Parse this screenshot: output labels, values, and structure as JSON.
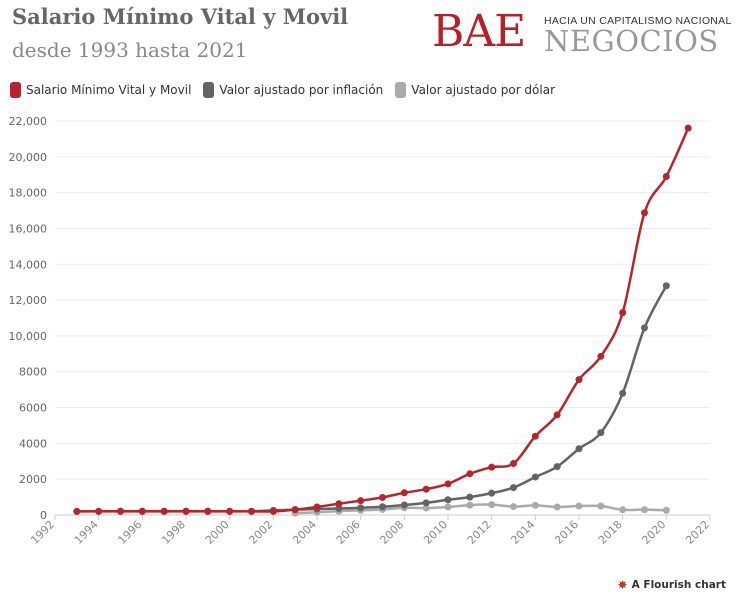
{
  "header": {
    "title": "Salario Mínimo Vital y Movil",
    "subtitle": "desde 1993 hasta 2021"
  },
  "logo": {
    "main": "BAE",
    "tagline": "HACIA UN CAPITALISMO NACIONAL",
    "sub": "NEGOCIOS"
  },
  "footer": {
    "credit": "A Flourish chart",
    "credit_icon": "flourish-icon"
  },
  "chart_data": {
    "type": "line",
    "title": "Salario Mínimo Vital y Movil",
    "subtitle": "desde 1993 hasta 2021",
    "xlabel": "",
    "ylabel": "",
    "xlim": [
      1992,
      2022
    ],
    "ylim": [
      0,
      22000
    ],
    "grid": true,
    "legend_position": "top-left",
    "x_ticks": [
      "1992",
      "1994",
      "1996",
      "1998",
      "2000",
      "2002",
      "2004",
      "2006",
      "2008",
      "2010",
      "2012",
      "2014",
      "2016",
      "2018",
      "2020",
      "2022"
    ],
    "y_ticks": [
      "0",
      "2000",
      "4000",
      "6000",
      "8000",
      "10,000",
      "12,000",
      "14,000",
      "16,000",
      "18,000",
      "20,000",
      "22,000"
    ],
    "series": [
      {
        "name": "Salario Mínimo Vital y Movil",
        "color": "#b8232c",
        "x": [
          1993,
          1994,
          1995,
          1996,
          1997,
          1998,
          1999,
          2000,
          2001,
          2002,
          2003,
          2004,
          2005,
          2006,
          2007,
          2008,
          2009,
          2010,
          2011,
          2012,
          2013,
          2014,
          2015,
          2016,
          2017,
          2018,
          2019,
          2020,
          2021
        ],
        "values": [
          200,
          200,
          200,
          200,
          200,
          200,
          200,
          200,
          200,
          200,
          300,
          450,
          630,
          800,
          980,
          1240,
          1440,
          1740,
          2300,
          2670,
          2875,
          4400,
          5590,
          7560,
          8860,
          11300,
          16875,
          18900,
          21600
        ]
      },
      {
        "name": "Valor ajustado por inflación",
        "color": "#636363",
        "x": [
          1993,
          1994,
          1995,
          1996,
          1997,
          1998,
          1999,
          2000,
          2001,
          2002,
          2003,
          2004,
          2005,
          2006,
          2007,
          2008,
          2009,
          2010,
          2011,
          2012,
          2013,
          2014,
          2015,
          2016,
          2017,
          2018,
          2019,
          2020
        ],
        "values": [
          200,
          210,
          215,
          215,
          215,
          218,
          215,
          212,
          210,
          260,
          300,
          330,
          360,
          400,
          460,
          560,
          680,
          850,
          1000,
          1220,
          1530,
          2120,
          2700,
          3700,
          4600,
          6800,
          10450,
          12800
        ]
      },
      {
        "name": "Valor ajustado por dólar",
        "color": "#aaaaaa",
        "x": [
          2003,
          2004,
          2005,
          2006,
          2007,
          2008,
          2009,
          2010,
          2011,
          2012,
          2013,
          2014,
          2015,
          2016,
          2017,
          2018,
          2019,
          2020
        ],
        "values": [
          105,
          155,
          215,
          260,
          310,
          400,
          390,
          450,
          550,
          580,
          470,
          540,
          450,
          500,
          500,
          290,
          300,
          260
        ]
      }
    ]
  }
}
